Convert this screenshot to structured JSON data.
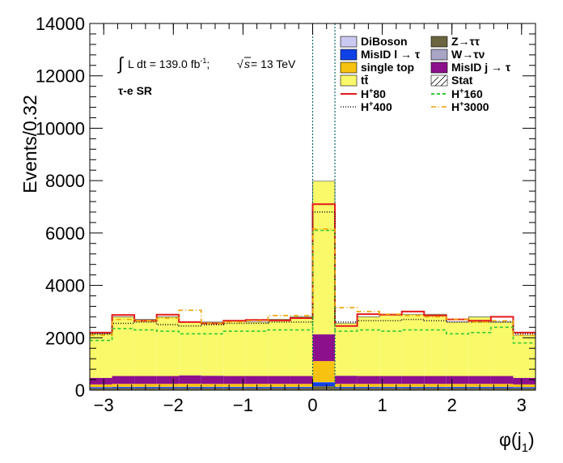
{
  "chart_data": {
    "type": "bar",
    "stacked": true,
    "xlabel": "φ(j",
    "xlabel_sub": "1",
    "xlabel_close": ")",
    "ylabel": "Events/0.32",
    "xlim": [
      -3.2,
      3.2
    ],
    "ylim": [
      0,
      14000
    ],
    "x_ticks": [
      -3,
      -2,
      -1,
      0,
      1,
      2,
      3
    ],
    "x_tick_labels": [
      "−3",
      "−2",
      "−1",
      "0",
      "1",
      "2",
      "3"
    ],
    "y_ticks": [
      0,
      2000,
      4000,
      6000,
      8000,
      10000,
      12000,
      14000
    ],
    "y_tick_labels": [
      "0",
      "2000",
      "4000",
      "6000",
      "8000",
      "10000",
      "12000",
      "14000"
    ],
    "bin_edges": [
      -3.2,
      -2.88,
      -2.56,
      -2.24,
      -1.92,
      -1.6,
      -1.28,
      -0.96,
      -0.64,
      -0.32,
      0.0,
      0.32,
      0.64,
      0.96,
      1.28,
      1.6,
      1.92,
      2.24,
      2.56,
      2.88,
      3.2
    ],
    "stack": [
      {
        "name": "DiBoson",
        "color": "#c9c9f2",
        "values": [
          20,
          20,
          20,
          20,
          20,
          20,
          20,
          20,
          20,
          20,
          20,
          20,
          20,
          20,
          20,
          20,
          20,
          20,
          20,
          20
        ]
      },
      {
        "name": "Z→ττ",
        "color": "#6b6540",
        "values": [
          50,
          55,
          55,
          55,
          55,
          55,
          55,
          55,
          55,
          55,
          130,
          55,
          55,
          55,
          55,
          55,
          55,
          55,
          55,
          50
        ]
      },
      {
        "name": "MisID l → τ",
        "color": "#1041e6",
        "values": [
          40,
          45,
          45,
          45,
          45,
          45,
          45,
          45,
          45,
          45,
          150,
          45,
          45,
          45,
          45,
          45,
          45,
          45,
          45,
          40
        ]
      },
      {
        "name": "W→τν",
        "color": "#a8a4c6",
        "values": [
          10,
          10,
          10,
          10,
          10,
          10,
          10,
          10,
          10,
          10,
          10,
          10,
          10,
          10,
          10,
          10,
          10,
          10,
          10,
          10
        ]
      },
      {
        "name": "single top",
        "color": "#f7c210",
        "values": [
          100,
          110,
          110,
          110,
          115,
          110,
          110,
          110,
          110,
          110,
          800,
          110,
          110,
          110,
          110,
          110,
          110,
          110,
          110,
          100
        ]
      },
      {
        "name": "MisID j → τ",
        "color": "#8c108c",
        "values": [
          250,
          300,
          300,
          300,
          320,
          310,
          300,
          300,
          300,
          300,
          1020,
          310,
          300,
          300,
          300,
          300,
          300,
          300,
          300,
          250
        ]
      },
      {
        "name": "tt̄",
        "color": "#f9f96a",
        "values": [
          1680,
          2260,
          2160,
          2260,
          2050,
          2050,
          2110,
          2060,
          2170,
          2260,
          5850,
          2010,
          2260,
          2360,
          2360,
          2360,
          2060,
          2260,
          2060,
          1630
        ]
      }
    ],
    "signals": [
      {
        "name": "H+80",
        "label_main": "H",
        "label_sup": "+",
        "label_rest": "80",
        "color": "#e41a1c",
        "dash": "",
        "values": [
          2200,
          2870,
          2650,
          2880,
          2600,
          2550,
          2650,
          2680,
          2660,
          2750,
          7100,
          2450,
          2900,
          2880,
          3000,
          2850,
          2700,
          2650,
          2800,
          2200
        ]
      },
      {
        "name": "H+160",
        "label_main": "H",
        "label_sup": "+",
        "label_rest": "160",
        "color": "#33cc33",
        "dash": "4,3",
        "values": [
          1900,
          2350,
          2300,
          2250,
          2150,
          2150,
          2250,
          2250,
          2300,
          2300,
          6100,
          2250,
          2300,
          2250,
          2300,
          2300,
          2150,
          2200,
          2400,
          1800
        ]
      },
      {
        "name": "H+400",
        "label_main": "H",
        "label_sup": "+",
        "label_rest": "400",
        "color": "#111111",
        "dash": "1,2",
        "values": [
          2150,
          2550,
          2600,
          2500,
          2450,
          2500,
          2550,
          2550,
          2600,
          2600,
          6800,
          2600,
          2650,
          2650,
          2700,
          2650,
          2600,
          2600,
          2600,
          2150
        ]
      },
      {
        "name": "H+3000",
        "label_main": "H",
        "label_sup": "+",
        "label_rest": "3000",
        "color": "#f0a000",
        "dash": "6,3,1,3",
        "values": [
          2100,
          2700,
          2650,
          2750,
          3050,
          2550,
          2600,
          2650,
          2850,
          2850,
          6150,
          3150,
          3000,
          2900,
          2850,
          2800,
          2700,
          2600,
          2650,
          2100
        ]
      }
    ],
    "stat_label": "Stat",
    "lumi_text": "L dt = 139.0 fb",
    "lumi_sup": "-1",
    "lumi_sep": ";",
    "sqrt_s": "s",
    "energy_text": " = 13 TeV",
    "region": "τ-e SR",
    "legend_placement": "top-right",
    "grid": false
  }
}
